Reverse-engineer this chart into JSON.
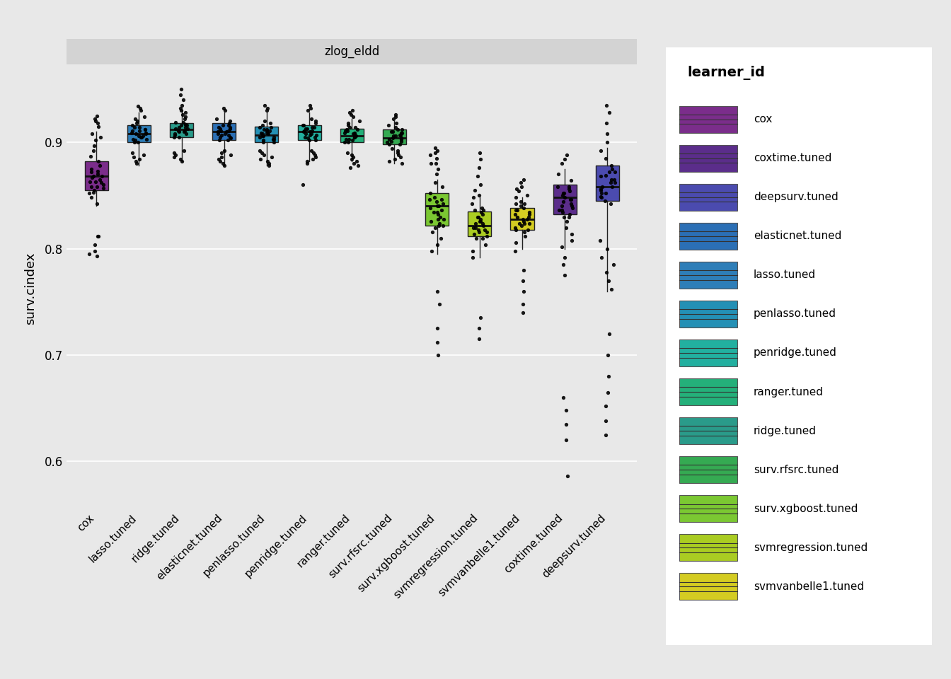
{
  "title": "zlog_eldd",
  "ylabel": "surv.cindex",
  "ylim": [
    0.555,
    0.97
  ],
  "yticks": [
    0.6,
    0.7,
    0.8,
    0.9
  ],
  "background_color": "#E8E8E8",
  "panel_bg": "#E8E8E8",
  "learners": [
    "cox",
    "lasso.tuned",
    "ridge.tuned",
    "elasticnet.tuned",
    "penlasso.tuned",
    "penridge.tuned",
    "ranger.tuned",
    "surv.rfsrc.tuned",
    "surv.xgboost.tuned",
    "svmregression.tuned",
    "svmvanbelle1.tuned",
    "coxtime.tuned",
    "deepsurv.tuned"
  ],
  "colors": {
    "cox": "#7B2D8B",
    "lasso.tuned": "#2E7EB8",
    "ridge.tuned": "#2A9B8A",
    "elasticnet.tuned": "#2B6FB5",
    "penlasso.tuned": "#2490B5",
    "penridge.tuned": "#22B0A0",
    "ranger.tuned": "#24B07A",
    "surv.rfsrc.tuned": "#35AA52",
    "surv.xgboost.tuned": "#7BC832",
    "svmregression.tuned": "#AACC22",
    "svmvanbelle1.tuned": "#D4CC22",
    "coxtime.tuned": "#5B2D8B",
    "deepsurv.tuned": "#4B4BAF"
  },
  "box_data": {
    "cox": {
      "q1": 0.855,
      "median": 0.868,
      "q3": 0.882,
      "whislo": 0.84,
      "whishi": 0.91
    },
    "lasso.tuned": {
      "q1": 0.9,
      "median": 0.908,
      "q3": 0.916,
      "whislo": 0.878,
      "whishi": 0.928
    },
    "ridge.tuned": {
      "q1": 0.905,
      "median": 0.912,
      "q3": 0.918,
      "whislo": 0.882,
      "whishi": 0.93
    },
    "elasticnet.tuned": {
      "q1": 0.902,
      "median": 0.91,
      "q3": 0.918,
      "whislo": 0.878,
      "whishi": 0.928
    },
    "penlasso.tuned": {
      "q1": 0.9,
      "median": 0.907,
      "q3": 0.915,
      "whislo": 0.878,
      "whishi": 0.928
    },
    "penridge.tuned": {
      "q1": 0.902,
      "median": 0.91,
      "q3": 0.916,
      "whislo": 0.882,
      "whishi": 0.928
    },
    "ranger.tuned": {
      "q1": 0.9,
      "median": 0.906,
      "q3": 0.913,
      "whislo": 0.882,
      "whishi": 0.922
    },
    "surv.rfsrc.tuned": {
      "q1": 0.898,
      "median": 0.904,
      "q3": 0.912,
      "whislo": 0.88,
      "whishi": 0.92
    },
    "surv.xgboost.tuned": {
      "q1": 0.822,
      "median": 0.84,
      "q3": 0.852,
      "whislo": 0.795,
      "whishi": 0.865
    },
    "svmregression.tuned": {
      "q1": 0.812,
      "median": 0.822,
      "q3": 0.835,
      "whislo": 0.792,
      "whishi": 0.848
    },
    "svmvanbelle1.tuned": {
      "q1": 0.818,
      "median": 0.828,
      "q3": 0.838,
      "whislo": 0.8,
      "whishi": 0.848
    },
    "coxtime.tuned": {
      "q1": 0.832,
      "median": 0.848,
      "q3": 0.86,
      "whislo": 0.8,
      "whishi": 0.875
    },
    "deepsurv.tuned": {
      "q1": 0.845,
      "median": 0.858,
      "q3": 0.878,
      "whislo": 0.76,
      "whishi": 0.895
    }
  },
  "scatter_points": {
    "cox": [
      0.855,
      0.86,
      0.865,
      0.87,
      0.875,
      0.858,
      0.863,
      0.868,
      0.873,
      0.878,
      0.852,
      0.857,
      0.862,
      0.867,
      0.872,
      0.848,
      0.853,
      0.858,
      0.863,
      0.868,
      0.882,
      0.887,
      0.892,
      0.897,
      0.902,
      0.905,
      0.908,
      0.842,
      0.812,
      0.795
    ],
    "lasso.tuned": [
      0.9,
      0.903,
      0.906,
      0.909,
      0.912,
      0.902,
      0.905,
      0.908,
      0.911,
      0.914,
      0.9,
      0.903,
      0.906,
      0.909,
      0.912,
      0.905,
      0.908,
      0.911,
      0.914,
      0.916,
      0.918,
      0.92,
      0.922,
      0.924,
      0.88,
      0.882,
      0.884,
      0.886,
      0.888,
      0.89
    ],
    "ridge.tuned": [
      0.905,
      0.908,
      0.911,
      0.914,
      0.917,
      0.907,
      0.91,
      0.913,
      0.916,
      0.919,
      0.905,
      0.908,
      0.911,
      0.914,
      0.917,
      0.91,
      0.913,
      0.916,
      0.919,
      0.922,
      0.924,
      0.926,
      0.928,
      0.93,
      0.882,
      0.884,
      0.886,
      0.888,
      0.89,
      0.892
    ],
    "elasticnet.tuned": [
      0.902,
      0.905,
      0.908,
      0.911,
      0.914,
      0.904,
      0.907,
      0.91,
      0.913,
      0.916,
      0.902,
      0.905,
      0.908,
      0.911,
      0.914,
      0.907,
      0.91,
      0.913,
      0.916,
      0.918,
      0.92,
      0.922,
      0.878,
      0.88,
      0.882,
      0.884,
      0.886,
      0.888,
      0.89,
      0.892
    ],
    "penlasso.tuned": [
      0.9,
      0.903,
      0.906,
      0.909,
      0.912,
      0.902,
      0.905,
      0.908,
      0.911,
      0.914,
      0.9,
      0.903,
      0.906,
      0.909,
      0.912,
      0.905,
      0.908,
      0.911,
      0.914,
      0.916,
      0.918,
      0.92,
      0.878,
      0.88,
      0.882,
      0.884,
      0.886,
      0.888,
      0.89,
      0.892
    ],
    "penridge.tuned": [
      0.902,
      0.905,
      0.908,
      0.911,
      0.914,
      0.904,
      0.907,
      0.91,
      0.913,
      0.916,
      0.902,
      0.905,
      0.908,
      0.911,
      0.914,
      0.907,
      0.91,
      0.913,
      0.916,
      0.918,
      0.92,
      0.922,
      0.88,
      0.882,
      0.884,
      0.886,
      0.888,
      0.89,
      0.892,
      0.86
    ],
    "ranger.tuned": [
      0.9,
      0.903,
      0.906,
      0.909,
      0.912,
      0.902,
      0.905,
      0.908,
      0.911,
      0.914,
      0.9,
      0.903,
      0.906,
      0.909,
      0.912,
      0.905,
      0.908,
      0.911,
      0.914,
      0.916,
      0.918,
      0.92,
      0.876,
      0.878,
      0.88,
      0.882,
      0.884,
      0.886,
      0.888,
      0.89
    ],
    "surv.rfsrc.tuned": [
      0.898,
      0.901,
      0.904,
      0.907,
      0.91,
      0.9,
      0.903,
      0.906,
      0.909,
      0.912,
      0.898,
      0.901,
      0.904,
      0.907,
      0.91,
      0.903,
      0.906,
      0.909,
      0.912,
      0.914,
      0.916,
      0.918,
      0.88,
      0.882,
      0.884,
      0.886,
      0.888,
      0.89,
      0.892,
      0.894
    ],
    "surv.xgboost.tuned": [
      0.822,
      0.828,
      0.834,
      0.84,
      0.846,
      0.824,
      0.83,
      0.836,
      0.842,
      0.848,
      0.82,
      0.826,
      0.832,
      0.838,
      0.844,
      0.828,
      0.834,
      0.84,
      0.846,
      0.852,
      0.858,
      0.862,
      0.798,
      0.804,
      0.81,
      0.816,
      0.822,
      0.88,
      0.888,
      0.892
    ],
    "svmregression.tuned": [
      0.812,
      0.818,
      0.824,
      0.83,
      0.836,
      0.814,
      0.82,
      0.826,
      0.832,
      0.838,
      0.81,
      0.816,
      0.822,
      0.828,
      0.834,
      0.818,
      0.824,
      0.83,
      0.836,
      0.842,
      0.848,
      0.792,
      0.798,
      0.804,
      0.81,
      0.816,
      0.82,
      0.826,
      0.85,
      0.855
    ],
    "svmvanbelle1.tuned": [
      0.818,
      0.824,
      0.83,
      0.836,
      0.842,
      0.82,
      0.826,
      0.832,
      0.838,
      0.844,
      0.816,
      0.822,
      0.828,
      0.834,
      0.84,
      0.824,
      0.83,
      0.836,
      0.842,
      0.848,
      0.798,
      0.806,
      0.812,
      0.818,
      0.824,
      0.828,
      0.832,
      0.85,
      0.854,
      0.856
    ],
    "coxtime.tuned": [
      0.832,
      0.838,
      0.844,
      0.85,
      0.856,
      0.834,
      0.84,
      0.846,
      0.852,
      0.858,
      0.83,
      0.836,
      0.842,
      0.848,
      0.854,
      0.84,
      0.846,
      0.852,
      0.858,
      0.864,
      0.87,
      0.802,
      0.808,
      0.814,
      0.82,
      0.826,
      0.83,
      0.836,
      0.88,
      0.586
    ],
    "deepsurv.tuned": [
      0.845,
      0.852,
      0.858,
      0.865,
      0.872,
      0.848,
      0.855,
      0.862,
      0.868,
      0.875,
      0.842,
      0.849,
      0.856,
      0.862,
      0.869,
      0.852,
      0.858,
      0.865,
      0.872,
      0.878,
      0.885,
      0.892,
      0.762,
      0.77,
      0.778,
      0.785,
      0.792,
      0.8,
      0.808,
      0.9
    ]
  },
  "outliers": {
    "cox": [
      0.793,
      0.798,
      0.804,
      0.812,
      0.915,
      0.918,
      0.92,
      0.922,
      0.925
    ],
    "lasso.tuned": [
      0.93,
      0.932,
      0.934
    ],
    "ridge.tuned": [
      0.932,
      0.935,
      0.94,
      0.945,
      0.95
    ],
    "elasticnet.tuned": [
      0.93,
      0.932
    ],
    "penlasso.tuned": [
      0.93,
      0.932,
      0.935
    ],
    "penridge.tuned": [
      0.93,
      0.932,
      0.935
    ],
    "ranger.tuned": [
      0.924,
      0.926,
      0.928,
      0.93
    ],
    "surv.rfsrc.tuned": [
      0.922,
      0.924,
      0.926
    ],
    "surv.xgboost.tuned": [
      0.725,
      0.712,
      0.7,
      0.748,
      0.76,
      0.87,
      0.875,
      0.88,
      0.885,
      0.89,
      0.895
    ],
    "svmregression.tuned": [
      0.715,
      0.725,
      0.735,
      0.86,
      0.868,
      0.876,
      0.884,
      0.89
    ],
    "svmvanbelle1.tuned": [
      0.74,
      0.748,
      0.76,
      0.77,
      0.78,
      0.858,
      0.862,
      0.865
    ],
    "coxtime.tuned": [
      0.62,
      0.635,
      0.648,
      0.66,
      0.775,
      0.785,
      0.792,
      0.884,
      0.888
    ],
    "deepsurv.tuned": [
      0.625,
      0.638,
      0.652,
      0.665,
      0.68,
      0.7,
      0.72,
      0.908,
      0.918,
      0.928,
      0.935
    ]
  },
  "legend_labels": [
    "cox",
    "coxtime.tuned",
    "deepsurv.tuned",
    "elasticnet.tuned",
    "lasso.tuned",
    "penlasso.tuned",
    "penridge.tuned",
    "ranger.tuned",
    "ridge.tuned",
    "surv.rfsrc.tuned",
    "surv.xgboost.tuned",
    "svmregression.tuned",
    "svmvanbelle1.tuned"
  ]
}
